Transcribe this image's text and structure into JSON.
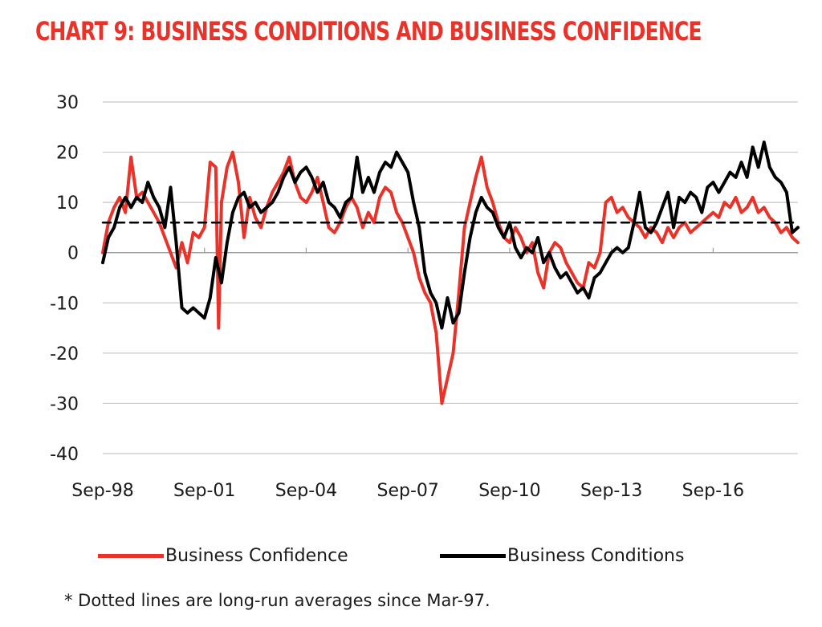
{
  "colors": {
    "title": "#e8332a",
    "confidence": "#e8332a",
    "conditions": "#000000",
    "grid": "#c8c8c8"
  },
  "chart_data": {
    "type": "line",
    "title": "CHART 9: BUSINESS CONDITIONS AND BUSINESS CONFIDENCE",
    "ylim": [
      -40,
      30
    ],
    "y_ticks": [
      "30",
      "20",
      "10",
      "0",
      "-10",
      "-20",
      "-30",
      "-40"
    ],
    "x_range": [
      "1998-09",
      "2019-03"
    ],
    "x_tick_labels": [
      "Sep-98",
      "Sep-01",
      "Sep-04",
      "Sep-07",
      "Sep-10",
      "Sep-13",
      "Sep-16"
    ],
    "grid": "horizontal",
    "legend_position": "bottom",
    "series": [
      {
        "name": "Business Confidence",
        "color": "#e8332a",
        "style": "solid",
        "points": [
          [
            "1998-09",
            0
          ],
          [
            "1998-11",
            6
          ],
          [
            "1999-01",
            9
          ],
          [
            "1999-03",
            11
          ],
          [
            "1999-05",
            8
          ],
          [
            "1999-07",
            19
          ],
          [
            "1999-09",
            11
          ],
          [
            "1999-11",
            12
          ],
          [
            "2000-01",
            10
          ],
          [
            "2000-03",
            8
          ],
          [
            "2000-05",
            6
          ],
          [
            "2000-07",
            3
          ],
          [
            "2000-09",
            0
          ],
          [
            "2000-11",
            -3
          ],
          [
            "2001-01",
            2
          ],
          [
            "2001-03",
            -2
          ],
          [
            "2001-05",
            4
          ],
          [
            "2001-07",
            3
          ],
          [
            "2001-09",
            5
          ],
          [
            "2001-11",
            18
          ],
          [
            "2002-01",
            17
          ],
          [
            "2002-02",
            -15
          ],
          [
            "2002-03",
            10
          ],
          [
            "2002-05",
            17
          ],
          [
            "2002-07",
            20
          ],
          [
            "2002-09",
            14
          ],
          [
            "2002-11",
            3
          ],
          [
            "2003-01",
            11
          ],
          [
            "2003-03",
            7
          ],
          [
            "2003-05",
            5
          ],
          [
            "2003-07",
            9
          ],
          [
            "2003-09",
            12
          ],
          [
            "2003-11",
            14
          ],
          [
            "2004-01",
            16
          ],
          [
            "2004-03",
            19
          ],
          [
            "2004-05",
            14
          ],
          [
            "2004-07",
            11
          ],
          [
            "2004-09",
            10
          ],
          [
            "2004-11",
            12
          ],
          [
            "2005-01",
            15
          ],
          [
            "2005-03",
            10
          ],
          [
            "2005-05",
            5
          ],
          [
            "2005-07",
            4
          ],
          [
            "2005-09",
            6
          ],
          [
            "2005-11",
            9
          ],
          [
            "2006-01",
            11
          ],
          [
            "2006-03",
            9
          ],
          [
            "2006-05",
            5
          ],
          [
            "2006-07",
            8
          ],
          [
            "2006-09",
            6
          ],
          [
            "2006-11",
            11
          ],
          [
            "2007-01",
            13
          ],
          [
            "2007-03",
            12
          ],
          [
            "2007-05",
            8
          ],
          [
            "2007-07",
            6
          ],
          [
            "2007-09",
            3
          ],
          [
            "2007-11",
            0
          ],
          [
            "2008-01",
            -5
          ],
          [
            "2008-03",
            -8
          ],
          [
            "2008-05",
            -10
          ],
          [
            "2008-07",
            -16
          ],
          [
            "2008-09",
            -30
          ],
          [
            "2008-11",
            -25
          ],
          [
            "2009-01",
            -20
          ],
          [
            "2009-03",
            -8
          ],
          [
            "2009-05",
            5
          ],
          [
            "2009-07",
            10
          ],
          [
            "2009-09",
            15
          ],
          [
            "2009-11",
            19
          ],
          [
            "2010-01",
            13
          ],
          [
            "2010-03",
            10
          ],
          [
            "2010-05",
            6
          ],
          [
            "2010-07",
            3
          ],
          [
            "2010-09",
            2
          ],
          [
            "2010-11",
            5
          ],
          [
            "2011-01",
            3
          ],
          [
            "2011-03",
            0
          ],
          [
            "2011-05",
            2
          ],
          [
            "2011-07",
            -4
          ],
          [
            "2011-09",
            -7
          ],
          [
            "2011-11",
            0
          ],
          [
            "2012-01",
            2
          ],
          [
            "2012-03",
            1
          ],
          [
            "2012-05",
            -2
          ],
          [
            "2012-07",
            -4
          ],
          [
            "2012-09",
            -6
          ],
          [
            "2012-11",
            -7
          ],
          [
            "2013-01",
            -2
          ],
          [
            "2013-03",
            -3
          ],
          [
            "2013-05",
            0
          ],
          [
            "2013-07",
            10
          ],
          [
            "2013-09",
            11
          ],
          [
            "2013-11",
            8
          ],
          [
            "2014-01",
            9
          ],
          [
            "2014-03",
            7
          ],
          [
            "2014-05",
            6
          ],
          [
            "2014-07",
            5
          ],
          [
            "2014-09",
            3
          ],
          [
            "2014-11",
            5
          ],
          [
            "2015-01",
            4
          ],
          [
            "2015-03",
            2
          ],
          [
            "2015-05",
            5
          ],
          [
            "2015-07",
            3
          ],
          [
            "2015-09",
            5
          ],
          [
            "2015-11",
            6
          ],
          [
            "2016-01",
            4
          ],
          [
            "2016-03",
            5
          ],
          [
            "2016-05",
            6
          ],
          [
            "2016-07",
            7
          ],
          [
            "2016-09",
            8
          ],
          [
            "2016-11",
            7
          ],
          [
            "2017-01",
            10
          ],
          [
            "2017-03",
            9
          ],
          [
            "2017-05",
            11
          ],
          [
            "2017-07",
            8
          ],
          [
            "2017-09",
            9
          ],
          [
            "2017-11",
            11
          ],
          [
            "2018-01",
            8
          ],
          [
            "2018-03",
            9
          ],
          [
            "2018-05",
            7
          ],
          [
            "2018-07",
            6
          ],
          [
            "2018-09",
            4
          ],
          [
            "2018-11",
            5
          ],
          [
            "2019-01",
            3
          ],
          [
            "2019-03",
            2
          ]
        ]
      },
      {
        "name": "Business Conditions",
        "color": "#000000",
        "style": "solid",
        "points": [
          [
            "1998-09",
            -2
          ],
          [
            "1998-11",
            3
          ],
          [
            "1999-01",
            5
          ],
          [
            "1999-03",
            9
          ],
          [
            "1999-05",
            11
          ],
          [
            "1999-07",
            9
          ],
          [
            "1999-09",
            11
          ],
          [
            "1999-11",
            10
          ],
          [
            "2000-01",
            14
          ],
          [
            "2000-03",
            11
          ],
          [
            "2000-05",
            9
          ],
          [
            "2000-07",
            5
          ],
          [
            "2000-09",
            13
          ],
          [
            "2000-11",
            2
          ],
          [
            "2001-01",
            -11
          ],
          [
            "2001-03",
            -12
          ],
          [
            "2001-05",
            -11
          ],
          [
            "2001-07",
            -12
          ],
          [
            "2001-09",
            -13
          ],
          [
            "2001-11",
            -9
          ],
          [
            "2002-01",
            -1
          ],
          [
            "2002-03",
            -6
          ],
          [
            "2002-05",
            2
          ],
          [
            "2002-07",
            8
          ],
          [
            "2002-09",
            11
          ],
          [
            "2002-11",
            12
          ],
          [
            "2003-01",
            9
          ],
          [
            "2003-03",
            10
          ],
          [
            "2003-05",
            8
          ],
          [
            "2003-07",
            9
          ],
          [
            "2003-09",
            10
          ],
          [
            "2003-11",
            12
          ],
          [
            "2004-01",
            15
          ],
          [
            "2004-03",
            17
          ],
          [
            "2004-05",
            14
          ],
          [
            "2004-07",
            16
          ],
          [
            "2004-09",
            17
          ],
          [
            "2004-11",
            15
          ],
          [
            "2005-01",
            12
          ],
          [
            "2005-03",
            14
          ],
          [
            "2005-05",
            10
          ],
          [
            "2005-07",
            9
          ],
          [
            "2005-09",
            7
          ],
          [
            "2005-11",
            10
          ],
          [
            "2006-01",
            11
          ],
          [
            "2006-03",
            19
          ],
          [
            "2006-05",
            12
          ],
          [
            "2006-07",
            15
          ],
          [
            "2006-09",
            12
          ],
          [
            "2006-11",
            16
          ],
          [
            "2007-01",
            18
          ],
          [
            "2007-03",
            17
          ],
          [
            "2007-05",
            20
          ],
          [
            "2007-07",
            18
          ],
          [
            "2007-09",
            16
          ],
          [
            "2007-11",
            10
          ],
          [
            "2008-01",
            5
          ],
          [
            "2008-03",
            -4
          ],
          [
            "2008-05",
            -8
          ],
          [
            "2008-07",
            -10
          ],
          [
            "2008-09",
            -15
          ],
          [
            "2008-11",
            -9
          ],
          [
            "2009-01",
            -14
          ],
          [
            "2009-03",
            -12
          ],
          [
            "2009-05",
            -4
          ],
          [
            "2009-07",
            3
          ],
          [
            "2009-09",
            8
          ],
          [
            "2009-11",
            11
          ],
          [
            "2010-01",
            9
          ],
          [
            "2010-03",
            8
          ],
          [
            "2010-05",
            5
          ],
          [
            "2010-07",
            3
          ],
          [
            "2010-09",
            6
          ],
          [
            "2010-11",
            1
          ],
          [
            "2011-01",
            -1
          ],
          [
            "2011-03",
            1
          ],
          [
            "2011-05",
            0
          ],
          [
            "2011-07",
            3
          ],
          [
            "2011-09",
            -2
          ],
          [
            "2011-11",
            0
          ],
          [
            "2012-01",
            -3
          ],
          [
            "2012-03",
            -5
          ],
          [
            "2012-05",
            -4
          ],
          [
            "2012-07",
            -6
          ],
          [
            "2012-09",
            -8
          ],
          [
            "2012-11",
            -7
          ],
          [
            "2013-01",
            -9
          ],
          [
            "2013-03",
            -5
          ],
          [
            "2013-05",
            -4
          ],
          [
            "2013-07",
            -2
          ],
          [
            "2013-09",
            0
          ],
          [
            "2013-11",
            1
          ],
          [
            "2014-01",
            0
          ],
          [
            "2014-03",
            1
          ],
          [
            "2014-05",
            6
          ],
          [
            "2014-07",
            12
          ],
          [
            "2014-09",
            5
          ],
          [
            "2014-11",
            4
          ],
          [
            "2015-01",
            6
          ],
          [
            "2015-03",
            9
          ],
          [
            "2015-05",
            12
          ],
          [
            "2015-07",
            5
          ],
          [
            "2015-09",
            11
          ],
          [
            "2015-11",
            10
          ],
          [
            "2016-01",
            12
          ],
          [
            "2016-03",
            11
          ],
          [
            "2016-05",
            8
          ],
          [
            "2016-07",
            13
          ],
          [
            "2016-09",
            14
          ],
          [
            "2016-11",
            12
          ],
          [
            "2017-01",
            14
          ],
          [
            "2017-03",
            16
          ],
          [
            "2017-05",
            15
          ],
          [
            "2017-07",
            18
          ],
          [
            "2017-09",
            15
          ],
          [
            "2017-11",
            21
          ],
          [
            "2018-01",
            17
          ],
          [
            "2018-03",
            22
          ],
          [
            "2018-05",
            17
          ],
          [
            "2018-07",
            15
          ],
          [
            "2018-09",
            14
          ],
          [
            "2018-11",
            12
          ],
          [
            "2019-01",
            4
          ],
          [
            "2019-03",
            5
          ]
        ]
      },
      {
        "name": "",
        "color": "#000000",
        "style": "dashed",
        "points": [
          [
            "1998-09",
            6
          ],
          [
            "2019-03",
            6
          ]
        ]
      }
    ]
  },
  "legend": {
    "confidence_label": "Business Confidence",
    "conditions_label": "Business Conditions"
  },
  "footnote": "* Dotted lines are long-run  averages since Mar-97."
}
